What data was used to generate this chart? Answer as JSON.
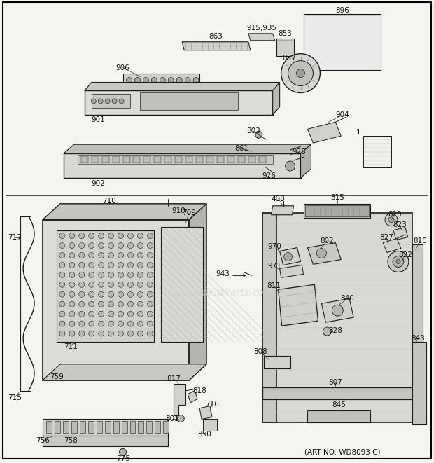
{
  "bg_color": "#f5f5f0",
  "border_color": "#000000",
  "line_color": "#1a1a1a",
  "art_no": "(ART NO. WD8093 C)",
  "watermark": "ReplacementParts.com",
  "figsize": [
    6.2,
    6.61
  ],
  "dpi": 100
}
